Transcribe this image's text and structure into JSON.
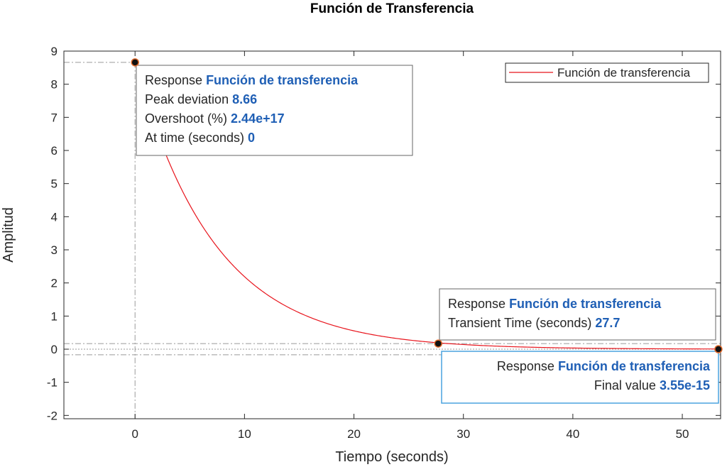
{
  "chart_data": {
    "type": "line",
    "title": "Función de Transferencia",
    "xlabel": "Tiempo (seconds)",
    "ylabel": "Amplitud",
    "xlim": [
      -6.5,
      53.5
    ],
    "ylim": [
      -2.1,
      9.0
    ],
    "xticks": [
      0,
      10,
      20,
      30,
      40,
      50
    ],
    "yticks": [
      -2,
      -1,
      0,
      1,
      2,
      3,
      4,
      5,
      6,
      7,
      8,
      9
    ],
    "grid": false,
    "legend_position": "top-right",
    "series": [
      {
        "name": "Función de transferencia",
        "color": "#e8141c",
        "decay_rate": 0.1375,
        "x": [
          0,
          1,
          2,
          3,
          4,
          5,
          6,
          8,
          10,
          12,
          14,
          16,
          18,
          20,
          22,
          24,
          26,
          27.7,
          30,
          35,
          40,
          45,
          50,
          53.3
        ],
        "y": [
          8.66,
          7.55,
          6.58,
          5.73,
          5.0,
          4.36,
          3.8,
          2.89,
          2.19,
          1.66,
          1.27,
          0.96,
          0.73,
          0.55,
          0.42,
          0.32,
          0.24,
          0.19,
          0.14,
          0.07,
          0.04,
          0.02,
          0.01,
          0.0
        ]
      }
    ],
    "settling_band": {
      "upper": 0.17,
      "lower": -0.17,
      "center": 0.0
    },
    "markers": [
      {
        "id": "peak",
        "x": 0,
        "y": 8.66,
        "lines": [
          {
            "label": "Response",
            "value": "Función de transferencia"
          },
          {
            "label": "Peak deviation",
            "value": "8.66"
          },
          {
            "label": "Overshoot (%)",
            "value": "2.44e+17"
          },
          {
            "label": "At time (seconds)",
            "value": "0"
          }
        ]
      },
      {
        "id": "transient",
        "x": 27.7,
        "y": 0.17,
        "lines": [
          {
            "label": "Response",
            "value": "Función de transferencia"
          },
          {
            "label": "Transient Time (seconds)",
            "value": "27.7"
          }
        ]
      },
      {
        "id": "final",
        "x": 53.3,
        "y": 0.0,
        "lines": [
          {
            "label": "Response",
            "value": "Función de transferencia"
          },
          {
            "label": "Final value",
            "value": "3.55e-15"
          }
        ]
      }
    ]
  },
  "colors": {
    "curve": "#e8141c",
    "value_text": "#1f5fb5",
    "axes": "#262626",
    "active_tip_border": "#4aa3df",
    "guide": "#9a9a9a"
  }
}
